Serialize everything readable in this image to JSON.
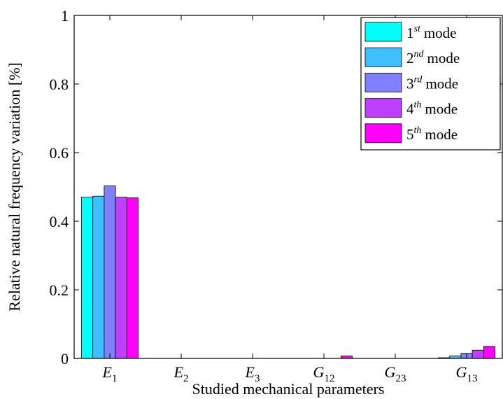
{
  "chart_data": {
    "type": "bar",
    "categories": [
      {
        "base": "E",
        "sub": "1"
      },
      {
        "base": "E",
        "sub": "2"
      },
      {
        "base": "E",
        "sub": "3"
      },
      {
        "base": "G",
        "sub": "12"
      },
      {
        "base": "G",
        "sub": "23"
      },
      {
        "base": "G",
        "sub": "13"
      }
    ],
    "series": [
      {
        "ordinal": "1",
        "suffix": "st",
        "word": "mode",
        "color": "#00ffff",
        "values": [
          0.47,
          0.0,
          0.0,
          0.0,
          0.0,
          0.002
        ]
      },
      {
        "ordinal": "2",
        "suffix": "nd",
        "word": "mode",
        "color": "#3fbfff",
        "values": [
          0.473,
          0.0,
          0.0,
          0.0,
          0.0,
          0.007
        ]
      },
      {
        "ordinal": "3",
        "suffix": "rd",
        "word": "mode",
        "color": "#7f7fff",
        "values": [
          0.503,
          0.0,
          0.0,
          0.0,
          0.0,
          0.015
        ]
      },
      {
        "ordinal": "4",
        "suffix": "th",
        "word": "mode",
        "color": "#bf3fff",
        "values": [
          0.47,
          0.0,
          0.0,
          0.0,
          0.0,
          0.024
        ]
      },
      {
        "ordinal": "5",
        "suffix": "th",
        "word": "mode",
        "color": "#ff00ff",
        "values": [
          0.468,
          0.0,
          0.0,
          0.007,
          0.0,
          0.035
        ]
      }
    ],
    "xlabel": "Studied mechanical parameters",
    "ylabel": "Relative natural frequency variation [%]",
    "ylim": [
      0,
      1
    ],
    "yticks": [
      "0",
      "0.2",
      "0.4",
      "0.6",
      "0.8",
      "1"
    ],
    "legend_position": "top-right",
    "grid": false
  }
}
